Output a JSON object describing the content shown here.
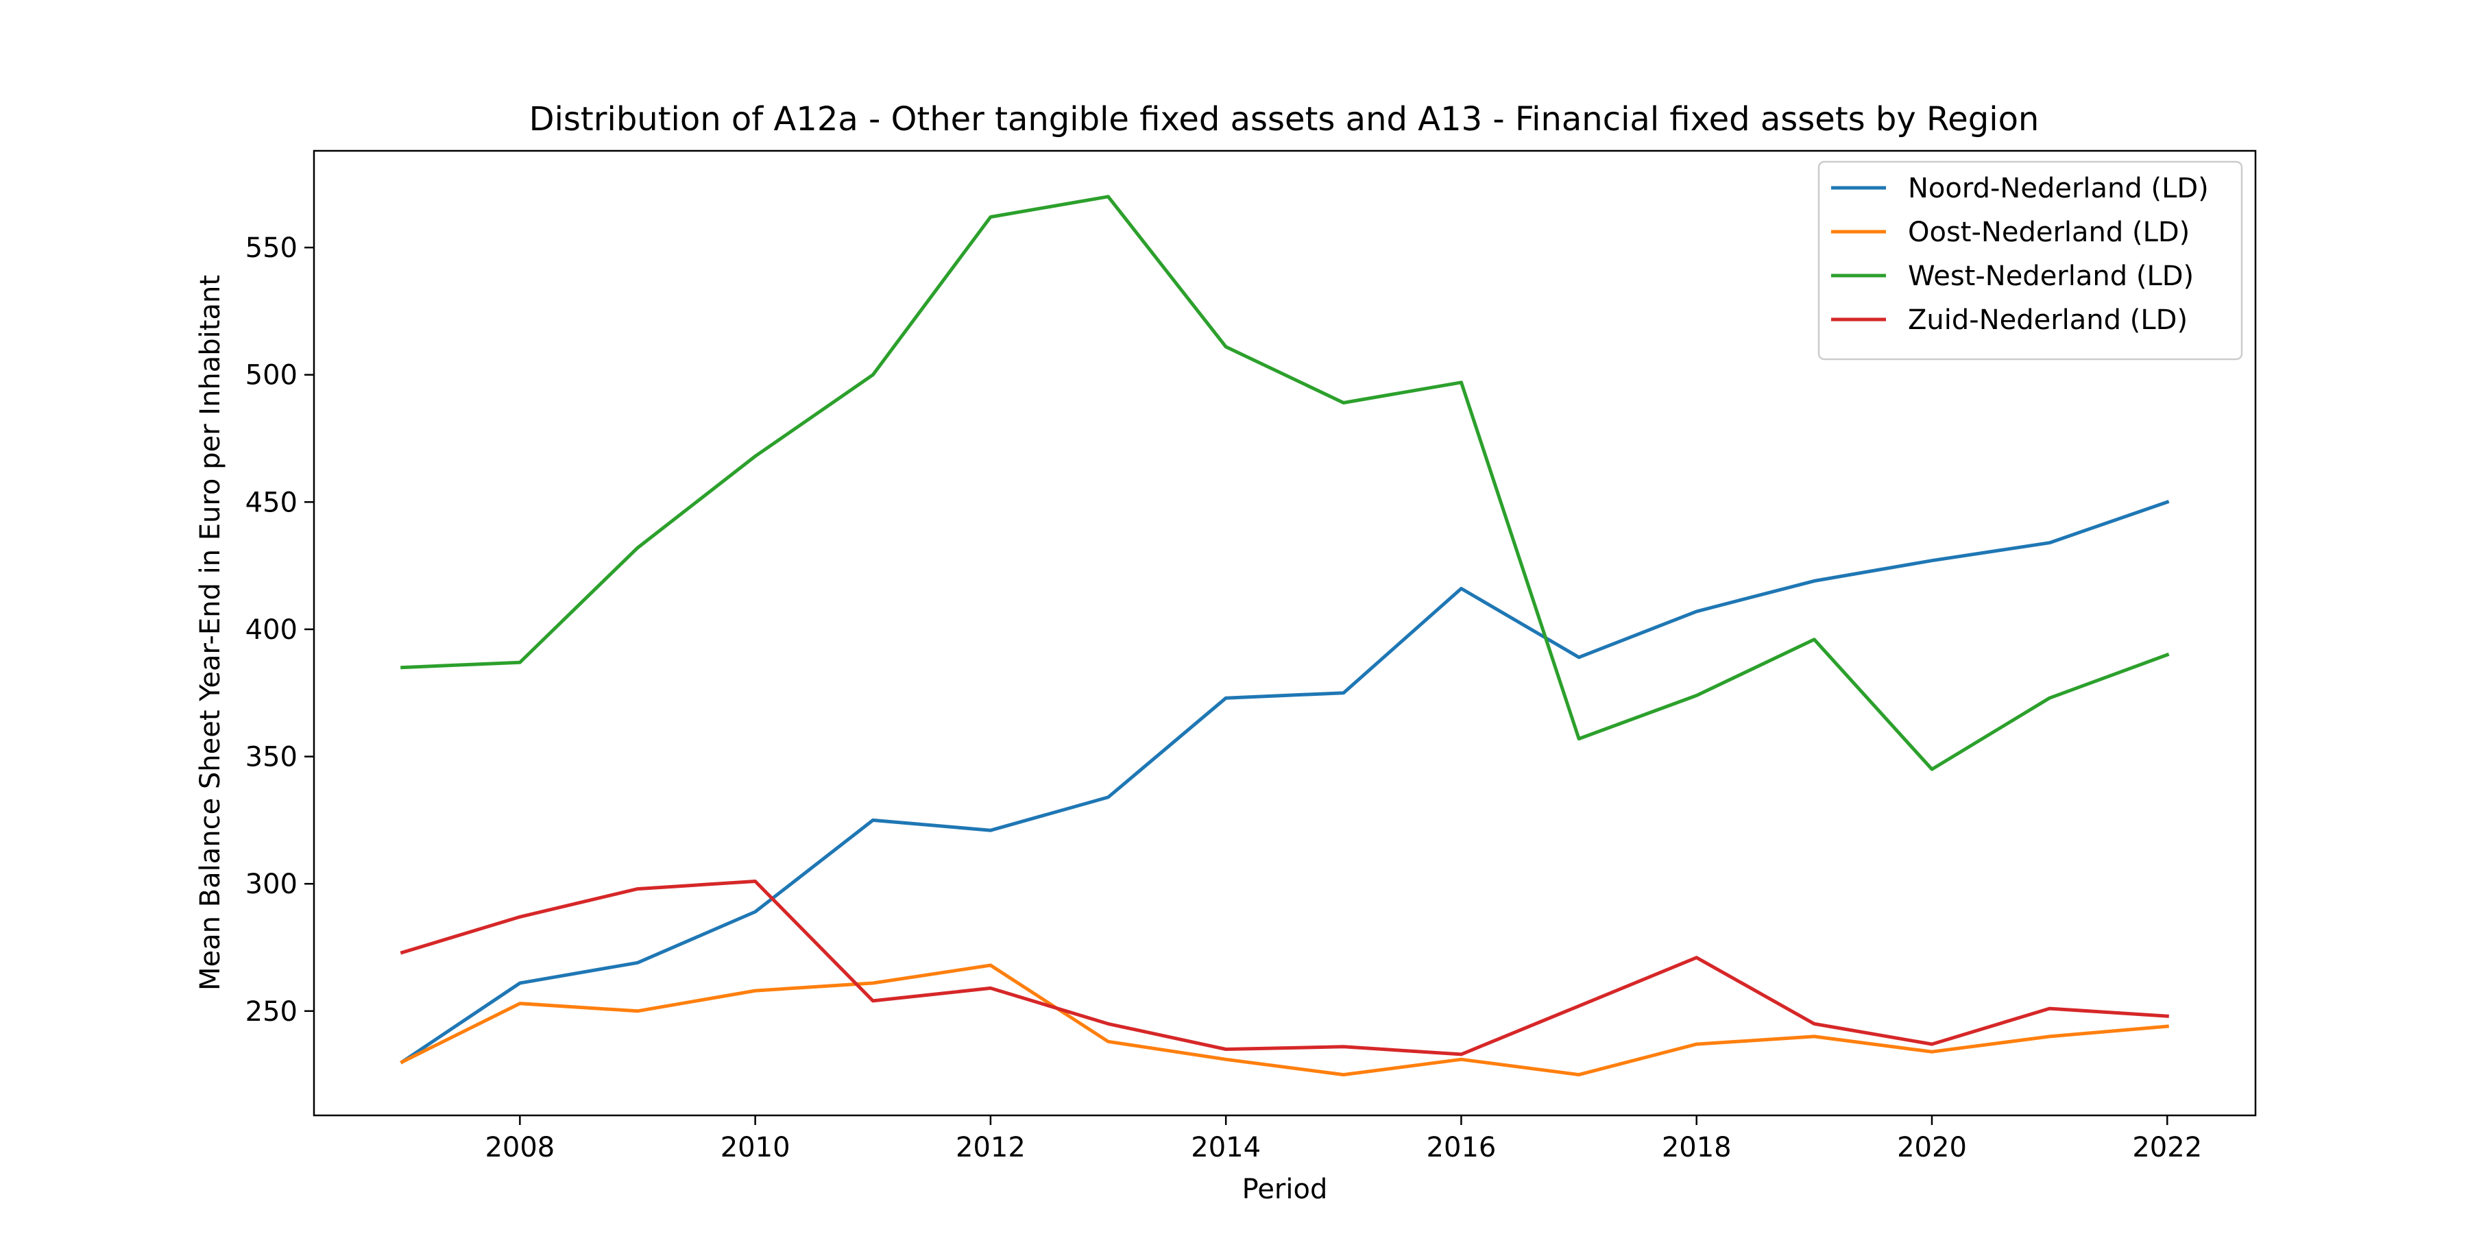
{
  "chart_data": {
    "type": "line",
    "title": "Distribution of A12a - Other tangible fixed assets and A13 - Financial fixed assets by Region",
    "xlabel": "Period",
    "ylabel": "Mean Balance Sheet Year-End in Euro per Inhabitant",
    "x": [
      2007,
      2008,
      2009,
      2010,
      2011,
      2012,
      2013,
      2014,
      2015,
      2016,
      2017,
      2018,
      2019,
      2020,
      2021,
      2022
    ],
    "xlim": [
      2006.25,
      2022.75
    ],
    "ylim": [
      209,
      588
    ],
    "xticks": [
      2008,
      2010,
      2012,
      2014,
      2016,
      2018,
      2020,
      2022
    ],
    "yticks": [
      250,
      300,
      350,
      400,
      450,
      500,
      550
    ],
    "legend_position": "top-right",
    "grid": false,
    "series": [
      {
        "name": "Noord-Nederland (LD)",
        "color": "#1f77b4",
        "values": [
          230,
          261,
          269,
          289,
          325,
          321,
          334,
          373,
          375,
          416,
          389,
          407,
          419,
          427,
          434,
          450
        ]
      },
      {
        "name": "Oost-Nederland (LD)",
        "color": "#ff7f0e",
        "values": [
          230,
          253,
          250,
          258,
          261,
          268,
          238,
          231,
          225,
          231,
          225,
          237,
          240,
          234,
          240,
          244
        ]
      },
      {
        "name": "West-Nederland (LD)",
        "color": "#2ca02c",
        "values": [
          385,
          387,
          432,
          468,
          500,
          562,
          570,
          511,
          489,
          497,
          357,
          374,
          396,
          345,
          373,
          390
        ]
      },
      {
        "name": "Zuid-Nederland (LD)",
        "color": "#d62728",
        "values": [
          273,
          287,
          298,
          301,
          254,
          259,
          245,
          235,
          236,
          233,
          252,
          271,
          245,
          237,
          251,
          248
        ]
      }
    ]
  }
}
